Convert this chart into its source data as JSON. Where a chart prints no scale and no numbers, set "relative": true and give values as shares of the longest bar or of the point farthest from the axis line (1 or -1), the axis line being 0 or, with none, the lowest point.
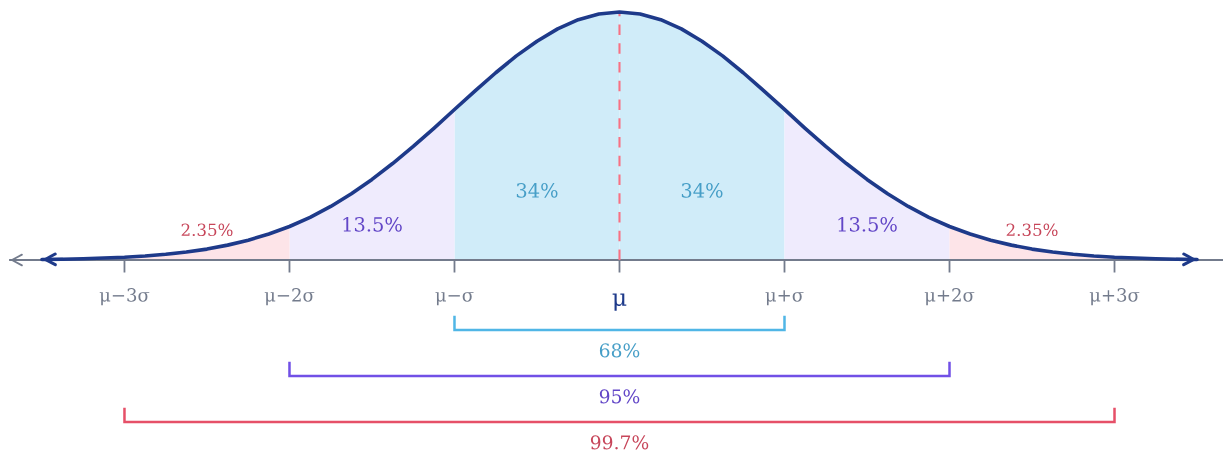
{
  "chart_data": {
    "type": "area",
    "relative": true,
    "tick_labels": "x",
    "categories": [
      null,
      null,
      null,
      null,
      "μ−3σ",
      null,
      null,
      null,
      null,
      null,
      null,
      null,
      "μ−2σ",
      null,
      null,
      null,
      null,
      null,
      null,
      null,
      "μ−σ",
      null,
      null,
      null,
      null,
      null,
      null,
      null,
      "μ",
      null,
      null,
      null,
      null,
      null,
      null,
      null,
      "μ+σ",
      null,
      null,
      null,
      null,
      null,
      null,
      null,
      "μ+2σ",
      null,
      null,
      null,
      null,
      null,
      null,
      null,
      "μ+3σ",
      null,
      null,
      null,
      null
    ],
    "series": [
      {
        "name": "34%",
        "color": "#d0ecf9",
        "values": [
          null,
          null,
          null,
          null,
          null,
          null,
          null,
          null,
          null,
          null,
          null,
          null,
          null,
          null,
          null,
          null,
          null,
          null,
          null,
          null,
          0.607,
          0.682,
          0.755,
          0.823,
          0.882,
          0.932,
          0.969,
          0.992,
          1,
          null,
          null,
          null,
          null,
          null,
          null,
          null,
          null,
          null,
          null,
          null,
          null,
          null,
          null,
          null,
          null,
          null,
          null,
          null,
          null,
          null,
          null,
          null,
          null,
          null,
          null,
          null,
          null
        ]
      },
      {
        "name": "34%",
        "color": "#d0ecf9",
        "values": [
          null,
          null,
          null,
          null,
          null,
          null,
          null,
          null,
          null,
          null,
          null,
          null,
          null,
          null,
          null,
          null,
          null,
          null,
          null,
          null,
          null,
          null,
          null,
          null,
          null,
          null,
          null,
          null,
          1,
          0.992,
          0.969,
          0.932,
          0.882,
          0.823,
          0.755,
          0.682,
          0.607,
          null,
          null,
          null,
          null,
          null,
          null,
          null,
          null,
          null,
          null,
          null,
          null,
          null,
          null,
          null,
          null,
          null,
          null,
          null,
          null
        ]
      },
      {
        "name": "13.5%",
        "color": "#efebfd",
        "values": [
          null,
          null,
          null,
          null,
          null,
          null,
          null,
          null,
          null,
          null,
          null,
          null,
          0.135,
          0.172,
          0.216,
          0.267,
          0.325,
          0.389,
          0.458,
          0.531,
          0.607,
          null,
          null,
          null,
          null,
          null,
          null,
          null,
          null,
          null,
          null,
          null,
          null,
          null,
          null,
          null,
          null,
          null,
          null,
          null,
          null,
          null,
          null,
          null,
          null,
          null,
          null,
          null,
          null,
          null,
          null,
          null,
          null,
          null,
          null,
          null,
          null
        ]
      },
      {
        "name": "13.5%",
        "color": "#efebfd",
        "values": [
          null,
          null,
          null,
          null,
          null,
          null,
          null,
          null,
          null,
          null,
          null,
          null,
          null,
          null,
          null,
          null,
          null,
          null,
          null,
          null,
          null,
          null,
          null,
          null,
          null,
          null,
          null,
          null,
          null,
          null,
          null,
          null,
          null,
          null,
          null,
          null,
          0.607,
          0.531,
          0.458,
          0.389,
          0.325,
          0.267,
          0.216,
          0.172,
          0.135,
          null,
          null,
          null,
          null,
          null,
          null,
          null,
          null,
          null,
          null,
          null,
          null
        ]
      },
      {
        "name": "2.35%",
        "color": "#fde4e8",
        "values": [
          null,
          null,
          null,
          null,
          0.011,
          0.016,
          0.023,
          0.032,
          0.044,
          0.06,
          0.08,
          0.105,
          0.135,
          null,
          null,
          null,
          null,
          null,
          null,
          null,
          null,
          null,
          null,
          null,
          null,
          null,
          null,
          null,
          null,
          null,
          null,
          null,
          null,
          null,
          null,
          null,
          null,
          null,
          null,
          null,
          null,
          null,
          null,
          null,
          null,
          null,
          null,
          null,
          null,
          null,
          null,
          null,
          null,
          null,
          null,
          null,
          null
        ]
      },
      {
        "name": "2.35%",
        "color": "#fde4e8",
        "values": [
          null,
          null,
          null,
          null,
          null,
          null,
          null,
          null,
          null,
          null,
          null,
          null,
          null,
          null,
          null,
          null,
          null,
          null,
          null,
          null,
          null,
          null,
          null,
          null,
          null,
          null,
          null,
          null,
          null,
          null,
          null,
          null,
          null,
          null,
          null,
          null,
          null,
          null,
          null,
          null,
          null,
          null,
          null,
          null,
          0.135,
          0.105,
          0.08,
          0.06,
          0.044,
          0.032,
          0.023,
          0.016,
          0.011,
          null,
          null,
          null,
          null
        ]
      },
      {
        "type": "line",
        "color": "#1e3a8a",
        "values": [
          0.002,
          0.003,
          0.005,
          0.008,
          0.011,
          0.016,
          0.023,
          0.032,
          0.044,
          0.06,
          0.08,
          0.105,
          0.135,
          0.172,
          0.216,
          0.267,
          0.325,
          0.389,
          0.458,
          0.531,
          0.607,
          0.682,
          0.755,
          0.823,
          0.882,
          0.932,
          0.969,
          0.992,
          1,
          0.992,
          0.969,
          0.932,
          0.882,
          0.823,
          0.755,
          0.682,
          0.607,
          0.531,
          0.458,
          0.389,
          0.325,
          0.267,
          0.216,
          0.172,
          0.135,
          0.105,
          0.08,
          0.06,
          0.044,
          0.032,
          0.023,
          0.016,
          0.011,
          0.008,
          0.005,
          0.003,
          0.002
        ]
      }
    ],
    "ref_lines": [
      {
        "axis": "x",
        "value": "μ",
        "color": "#f87184",
        "line_style": "dashed"
      }
    ],
    "annotations": [
      "68%",
      "95%",
      "99.7%"
    ]
  }
}
